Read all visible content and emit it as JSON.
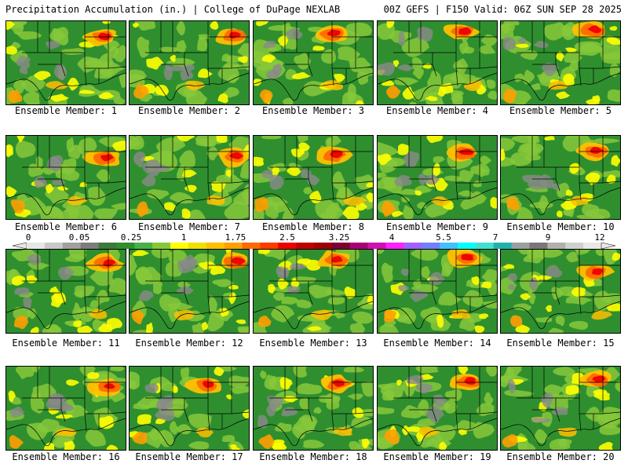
{
  "header": {
    "left_title": "Precipitation Accumulation (in.) | College of DuPage NEXLAB",
    "right_title": "00Z GEFS | F150 Valid: 06Z SUN SEP 28 2025"
  },
  "colorbar": {
    "labels": [
      "0",
      "0.05",
      "0.25",
      "1",
      "1.75",
      "2.5",
      "3.25",
      "4",
      "5.5",
      "7",
      "9",
      "12"
    ],
    "colors": [
      "#e6e6e6",
      "#c8c8c8",
      "#a0a0a0",
      "#7d7d7d",
      "#3c7a3c",
      "#2f8f2f",
      "#47b147",
      "#86c83a",
      "#ffff00",
      "#f0e000",
      "#ffc000",
      "#ff9f00",
      "#ff6a00",
      "#ff3a00",
      "#ee0000",
      "#c00000",
      "#a00000",
      "#800030",
      "#aa0077",
      "#d010b0",
      "#ff20ff",
      "#a060ff",
      "#7080ff",
      "#40c0ff",
      "#00ffff",
      "#40e0d0",
      "#20b2aa",
      "#9aa0a0",
      "#787878",
      "#b0b0b0",
      "#d0d0d0",
      "#e8e8e8"
    ]
  },
  "panels": [
    {
      "label": "Ensemble Member: 1"
    },
    {
      "label": "Ensemble Member: 2"
    },
    {
      "label": "Ensemble Member: 3"
    },
    {
      "label": "Ensemble Member: 4"
    },
    {
      "label": "Ensemble Member: 5"
    },
    {
      "label": "Ensemble Member: 6"
    },
    {
      "label": "Ensemble Member: 7"
    },
    {
      "label": "Ensemble Member: 8"
    },
    {
      "label": "Ensemble Member: 9"
    },
    {
      "label": "Ensemble Member: 10"
    },
    {
      "label": "Ensemble Member: 11"
    },
    {
      "label": "Ensemble Member: 12"
    },
    {
      "label": "Ensemble Member: 13"
    },
    {
      "label": "Ensemble Member: 14"
    },
    {
      "label": "Ensemble Member: 15"
    },
    {
      "label": "Ensemble Member: 16"
    },
    {
      "label": "Ensemble Member: 17"
    },
    {
      "label": "Ensemble Member: 18"
    },
    {
      "label": "Ensemble Member: 19"
    },
    {
      "label": "Ensemble Member: 20"
    }
  ]
}
